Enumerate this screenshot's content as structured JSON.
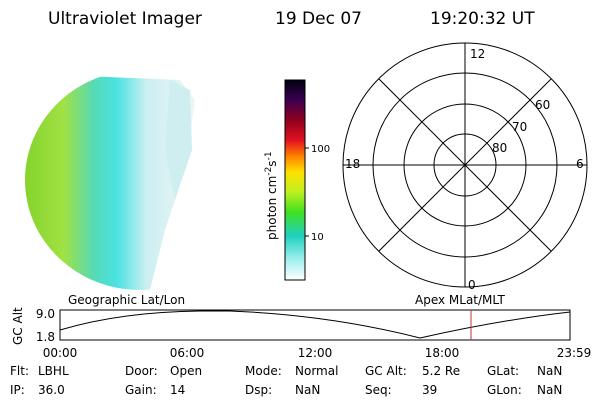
{
  "header": {
    "title": "Ultraviolet Imager",
    "date": "19 Dec 07",
    "time": "19:20:32 UT"
  },
  "colorbar": {
    "unit": [
      "photon cm",
      "-2",
      "s",
      "-1"
    ],
    "ticks": [
      "100",
      "10"
    ]
  },
  "polar": {
    "mlt_labels": [
      "12",
      "18",
      "6",
      "0"
    ],
    "lat_labels": [
      "60",
      "70",
      "80"
    ]
  },
  "orbit": {
    "left_title": "Geographic Lat/Lon",
    "right_title": "Apex MLat/MLT",
    "y_label": "GC Alt",
    "y_labels": [
      "9.0",
      "1.8"
    ],
    "x_labels": [
      "00:00",
      "06:00",
      "12:00",
      "18:00",
      "23:59"
    ]
  },
  "info": [
    [
      {
        "label": "Flt:",
        "value": "LBHL"
      },
      {
        "label": "Door:",
        "value": "Open"
      },
      {
        "label": "Mode:",
        "value": "Normal"
      },
      {
        "label": "GC Alt:",
        "value": "5.2 Re"
      },
      {
        "label": "GLat:",
        "value": "NaN"
      }
    ],
    [
      {
        "label": "IP:",
        "value": "36.0"
      },
      {
        "label": "Gain:",
        "value": "14"
      },
      {
        "label": "Dsp:",
        "value": "NaN"
      },
      {
        "label": "Seq:",
        "value": "39"
      },
      {
        "label": "GLon:",
        "value": "NaN"
      }
    ]
  ]
}
